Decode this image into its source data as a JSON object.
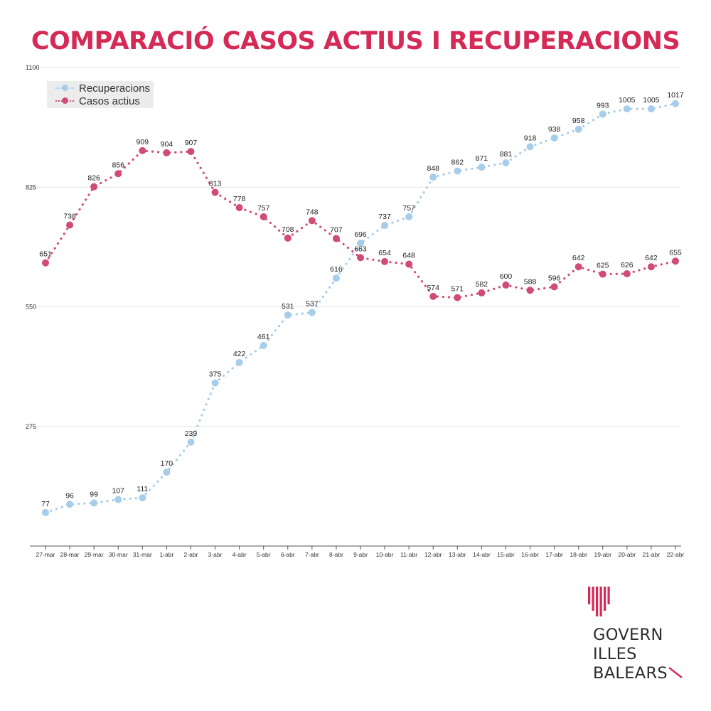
{
  "title": "COMPARACIÓ CASOS ACTIUS I RECUPERACIONS",
  "chart_data": {
    "type": "line",
    "title": "COMPARACIÓ CASOS ACTIUS I RECUPERACIONS",
    "xlabel": "",
    "ylabel": "",
    "categories": [
      "27-mar",
      "28-mar",
      "29-mar",
      "30-mar",
      "31-mar",
      "1-abr",
      "2-abr",
      "3-abr",
      "4-abr",
      "5-abr",
      "6-abr",
      "7-abr",
      "8-abr",
      "9-abr",
      "10-abr",
      "11-abr",
      "12-abr",
      "13-abr",
      "14-abr",
      "15-abr",
      "16-abr",
      "17-abr",
      "18-abr",
      "19-abr",
      "20-abr",
      "21-abr",
      "22-abr"
    ],
    "y_ticks": [
      "275",
      "550",
      "825",
      "1100"
    ],
    "ylim": [
      0,
      1100
    ],
    "grid": "horizontal",
    "legend_position": "top-left",
    "series": [
      {
        "name": "Recuperacions",
        "color": "#a6cdea",
        "values": [
          77,
          96,
          99,
          107,
          111,
          170,
          239,
          375,
          422,
          461,
          531,
          537,
          616,
          696,
          737,
          757,
          848,
          862,
          871,
          881,
          918,
          938,
          958,
          993,
          1005,
          1005,
          1017
        ]
      },
      {
        "name": "Casos actius",
        "color": "#d04c72",
        "values": [
          651,
          738,
          826,
          856,
          909,
          904,
          907,
          813,
          778,
          757,
          708,
          748,
          707,
          663,
          654,
          648,
          574,
          571,
          582,
          600,
          588,
          596,
          642,
          625,
          626,
          642,
          655
        ]
      }
    ]
  },
  "logo": {
    "line1": "GOVERN",
    "line2": "ILLES",
    "line3": "BALEARS",
    "accent_color": "#d42a55"
  }
}
